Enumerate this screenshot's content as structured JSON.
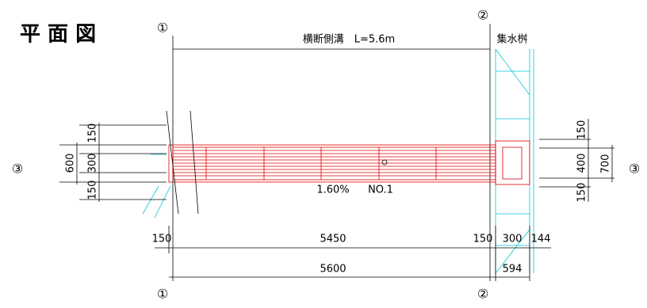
{
  "title": "平 面 図",
  "labels": {
    "channel": "横断側溝　L=5.6m",
    "basin": "集水桝",
    "slope": "1.60%",
    "number": "NO.1"
  },
  "section_marks": {
    "top_1": "①",
    "bottom_1": "①",
    "top_2": "②",
    "bottom_2": "②",
    "left_3": "③",
    "right_3": "③"
  },
  "dimensions": {
    "left": [
      "150",
      "300",
      "150",
      "600"
    ],
    "right": [
      "150",
      "400",
      "150",
      "700"
    ],
    "bottom_row1": [
      "150",
      "5450",
      "150",
      "300",
      "144"
    ],
    "bottom_row2": [
      "5600",
      "594"
    ]
  }
}
